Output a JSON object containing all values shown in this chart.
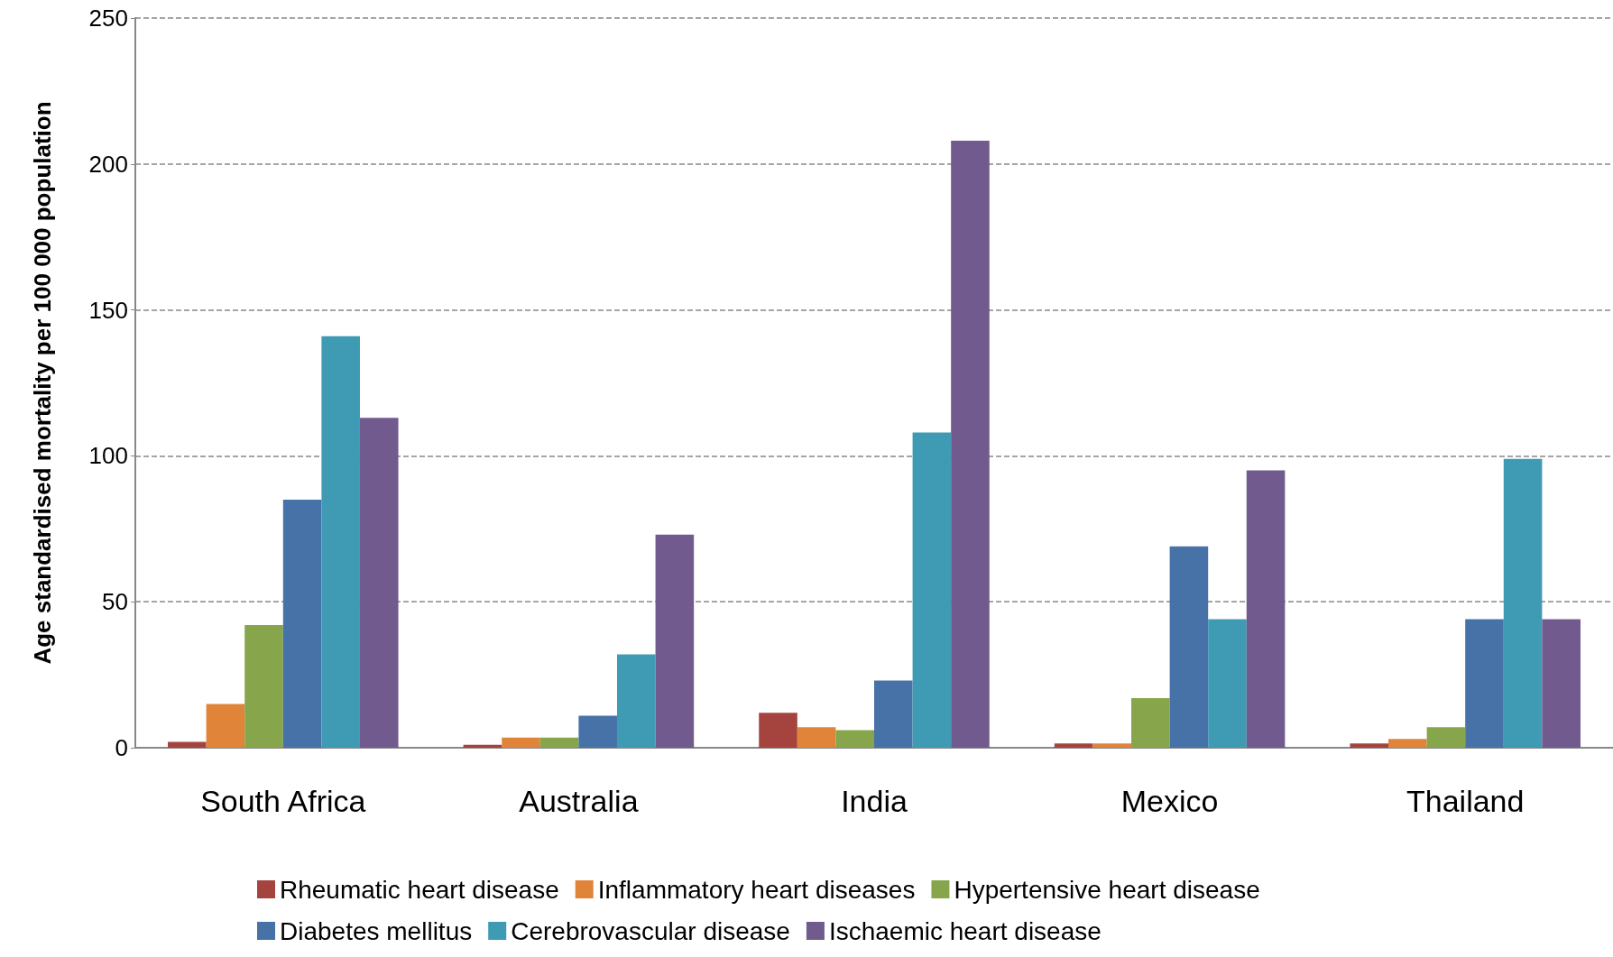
{
  "chart_data": {
    "type": "bar",
    "ylabel": "Age standardised mortality per 100 000 population",
    "categories": [
      "South Africa",
      "Australia",
      "India",
      "Mexico",
      "Thailand"
    ],
    "series": [
      {
        "name": "Rheumatic heart disease",
        "color": "#a5443f",
        "values": [
          2,
          1,
          12,
          1.5,
          1.5
        ]
      },
      {
        "name": "Inflammatory heart diseases",
        "color": "#e0843a",
        "values": [
          15,
          3.5,
          7,
          1.5,
          3
        ]
      },
      {
        "name": "Hypertensive heart disease",
        "color": "#87a54a",
        "values": [
          42,
          3.5,
          6,
          17,
          7
        ]
      },
      {
        "name": "Diabetes mellitus",
        "color": "#4672a8",
        "values": [
          85,
          11,
          23,
          69,
          44
        ]
      },
      {
        "name": "Cerebrovascular disease",
        "color": "#3f9bb3",
        "values": [
          141,
          32,
          108,
          44,
          99
        ]
      },
      {
        "name": "Ischaemic heart disease",
        "color": "#705a8e",
        "values": [
          113,
          73,
          208,
          95,
          44
        ]
      }
    ],
    "ylim": [
      0,
      250
    ],
    "yticks": [
      0,
      50,
      100,
      150,
      200,
      250
    ],
    "grid": "y",
    "legend": "bottom"
  }
}
